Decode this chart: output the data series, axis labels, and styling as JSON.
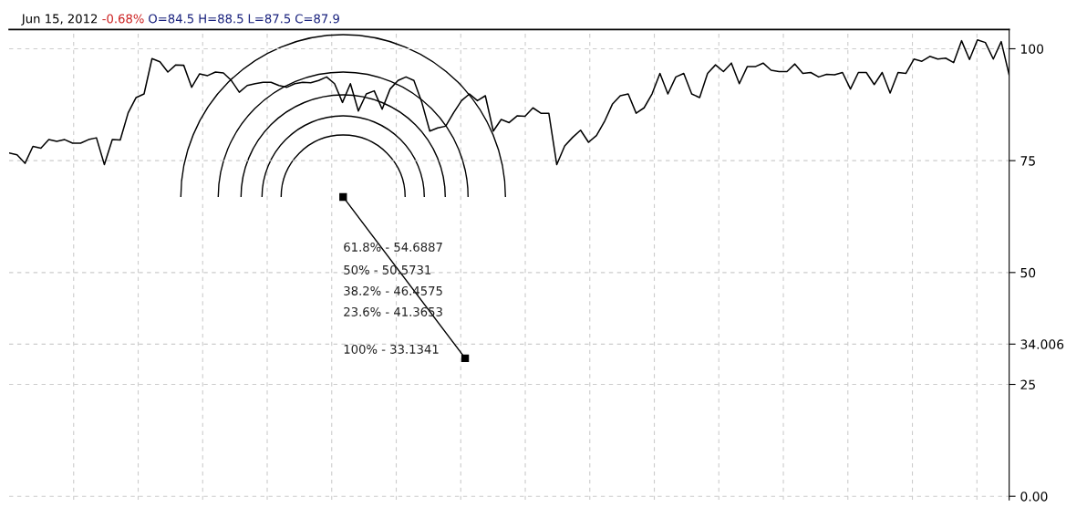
{
  "chart_data": {
    "type": "line",
    "title": "Jun 15, 2012 -0.68% O=84.5 H=88.5 L=87.5 C=87.9",
    "categories": [
      null,
      null,
      null,
      null,
      null,
      null,
      null,
      null,
      null,
      null,
      null,
      null,
      null,
      null,
      null,
      null,
      null,
      null,
      null,
      null,
      null,
      null,
      null,
      null,
      null,
      null,
      null,
      null,
      null,
      null,
      null,
      null,
      null,
      null,
      null,
      null,
      null,
      null,
      null,
      null,
      null,
      null,
      null,
      null,
      null,
      null,
      null,
      null,
      null,
      null,
      null,
      null,
      null,
      null,
      null,
      null,
      null,
      null,
      null,
      null,
      null,
      null,
      null,
      null,
      null,
      null,
      null,
      null,
      null,
      null,
      null,
      null,
      null,
      null,
      null,
      null,
      null,
      null,
      null,
      null,
      null,
      null,
      null,
      null,
      null,
      null,
      null,
      null,
      null,
      null,
      null,
      null,
      null,
      null,
      null,
      null,
      null,
      null,
      null,
      null,
      null,
      null,
      null,
      null,
      null,
      null,
      null,
      null,
      null,
      null,
      null,
      null,
      null,
      null,
      null,
      null,
      null,
      null,
      null,
      null,
      null,
      null,
      null,
      null,
      null,
      null,
      null
    ],
    "series": [
      {
        "color": "#000000",
        "values": [
          76.7,
          76.3,
          74.4,
          78.2,
          77.8,
          79.7,
          79.3,
          79.7,
          78.9,
          78.9,
          79.7,
          80.1,
          74.1,
          79.7,
          79.6,
          85.7,
          89.1,
          89.9,
          97.8,
          97.1,
          94.8,
          96.4,
          96.3,
          91.4,
          94.4,
          94.0,
          94.8,
          94.6,
          92.9,
          90.3,
          91.8,
          92.2,
          92.5,
          92.5,
          91.8,
          91.4,
          92.2,
          92.5,
          92.4,
          92.9,
          93.7,
          92.2,
          88.0,
          92.2,
          86.1,
          89.9,
          90.6,
          86.5,
          91.0,
          92.9,
          93.7,
          92.9,
          88.0,
          81.6,
          82.3,
          82.7,
          85.7,
          88.4,
          89.9,
          88.4,
          89.5,
          81.6,
          84.2,
          83.5,
          85.0,
          84.9,
          86.8,
          85.6,
          85.6,
          74.1,
          78.3,
          80.2,
          81.8,
          79.1,
          80.6,
          83.7,
          87.6,
          89.5,
          89.9,
          85.6,
          86.8,
          89.9,
          94.5,
          89.9,
          93.7,
          94.5,
          89.9,
          89.1,
          94.5,
          96.4,
          94.9,
          96.8,
          92.2,
          96.0,
          96.0,
          96.8,
          95.2,
          94.9,
          94.9,
          96.6,
          94.5,
          94.7,
          93.7,
          94.3,
          94.2,
          94.7,
          91.0,
          94.7,
          94.7,
          92.0,
          94.7,
          90.1,
          94.7,
          94.5,
          97.7,
          97.2,
          98.3,
          97.7,
          97.9,
          96.9,
          101.8,
          97.6,
          102.0,
          101.4,
          97.7,
          101.6,
          94.1
        ]
      }
    ],
    "annotations": [
      "61.8% - 54.6887",
      "50% - 50.5731",
      "38.2% - 46.4575",
      "23.6% - 41.3653",
      "100% - 33.1341"
    ],
    "ylim": [
      -0.8,
      104.3
    ],
    "yticks": [
      {
        "value": 0,
        "label": "0.00"
      },
      25,
      {
        "value": 34.006,
        "label": "34.006"
      },
      50,
      75,
      100
    ],
    "tick_labels": "y",
    "grid": true
  }
}
